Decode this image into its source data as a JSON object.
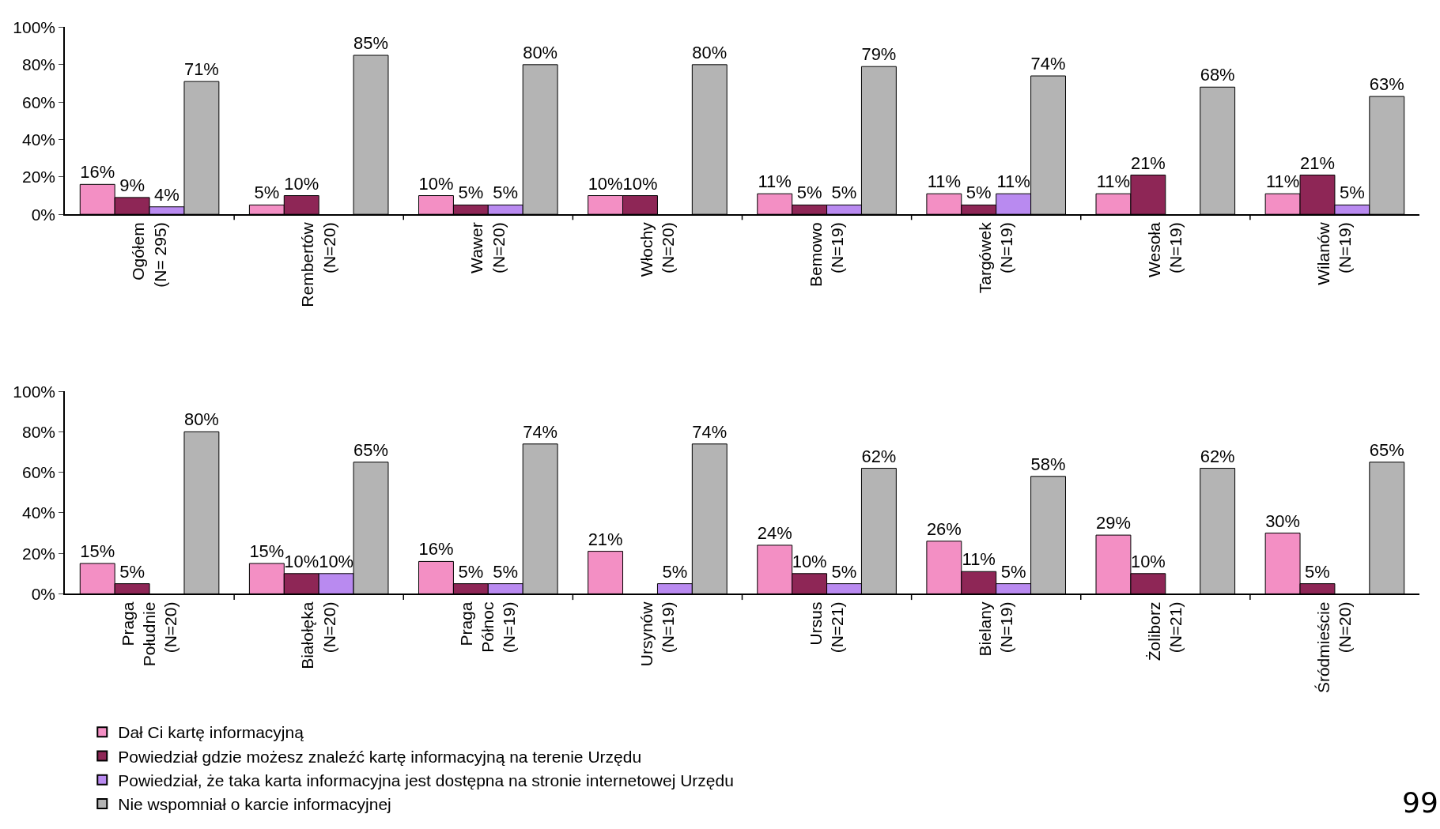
{
  "chart_data": [
    {
      "type": "bar",
      "categories": [
        "Ogółem\n(N= 295)",
        "Rembertów\n(N=20)",
        "Wawer\n(N=20)",
        "Włochy\n(N=20)",
        "Bemowo\n(N=19)",
        "Targówek\n(N=19)",
        "Wesoła\n(N=19)",
        "Wilanów\n(N=19)"
      ],
      "series": [
        {
          "name": "Dał Ci kartę informacyjną",
          "color": "#f38fc4",
          "values": [
            16,
            5,
            10,
            10,
            11,
            11,
            11,
            11
          ],
          "value_labels": [
            "16%",
            "5%",
            "10%",
            "10%",
            "11%",
            "11%",
            "11%",
            "11%"
          ]
        },
        {
          "name": "Powiedział gdzie możesz znaleźć kartę informacyjną na terenie Urzędu",
          "color": "#8e2656",
          "values": [
            9,
            10,
            5,
            10,
            5,
            5,
            21,
            21
          ],
          "value_labels": [
            "9%",
            "10%",
            "5%",
            "10%",
            "5%",
            "5%",
            "21%",
            "21%"
          ]
        },
        {
          "name": "Powiedział, że taka karta informacyjna jest dostępna na stronie internetowej Urzędu",
          "color": "#b98af0",
          "values": [
            4,
            null,
            5,
            null,
            5,
            11,
            null,
            5
          ],
          "value_labels": [
            "4%",
            null,
            "5%",
            null,
            "5%",
            "11%",
            null,
            "5%"
          ]
        },
        {
          "name": "Nie wspomniał o karcie informacyjnej",
          "color": "#b4b4b4",
          "values": [
            71,
            85,
            80,
            80,
            79,
            74,
            68,
            63
          ],
          "value_labels": [
            "71%",
            "85%",
            "80%",
            "80%",
            "79%",
            "74%",
            "68%",
            "63%"
          ]
        }
      ],
      "ylim": [
        0,
        100
      ],
      "yticks": [
        {
          "value": 0,
          "label": "0%"
        },
        {
          "value": 20,
          "label": "20%"
        },
        {
          "value": 40,
          "label": "40%"
        },
        {
          "value": 60,
          "label": "60%"
        },
        {
          "value": 80,
          "label": "80%"
        },
        {
          "value": 100,
          "label": "100%"
        }
      ],
      "grid": false,
      "legend": "bottom left"
    },
    {
      "type": "bar",
      "categories": [
        "Praga\nPołudnie\n(N=20)",
        "Białołęka\n(N=20)",
        "Praga\nPółnoc\n(N=19)",
        "Ursynów\n(N=19)",
        "Ursus\n(N=21)",
        "Bielany\n(N=19)",
        "Żoliborz\n(N=21)",
        "Śródmieście\n(N=20)"
      ],
      "series": [
        {
          "name": "Dał Ci kartę informacyjną",
          "color": "#f38fc4",
          "values": [
            15,
            15,
            16,
            21,
            24,
            26,
            29,
            30
          ],
          "value_labels": [
            "15%",
            "15%",
            "16%",
            "21%",
            "24%",
            "26%",
            "29%",
            "30%"
          ]
        },
        {
          "name": "Powiedział gdzie możesz znaleźć kartę informacyjną na terenie Urzędu",
          "color": "#8e2656",
          "values": [
            5,
            10,
            5,
            null,
            10,
            11,
            10,
            5
          ],
          "value_labels": [
            "5%",
            "10%",
            "5%",
            null,
            "10%",
            "11%",
            "10%",
            "5%"
          ]
        },
        {
          "name": "Powiedział, że taka karta informacyjna jest dostępna na stronie internetowej Urzędu",
          "color": "#b98af0",
          "values": [
            null,
            10,
            5,
            5,
            5,
            5,
            null,
            null
          ],
          "value_labels": [
            null,
            "10%",
            "5%",
            "5%",
            "5%",
            "5%",
            null,
            null
          ]
        },
        {
          "name": "Nie wspomniał o karcie informacyjnej",
          "color": "#b4b4b4",
          "values": [
            80,
            65,
            74,
            74,
            62,
            58,
            62,
            65
          ],
          "value_labels": [
            "80%",
            "65%",
            "74%",
            "74%",
            "62%",
            "58%",
            "62%",
            "65%"
          ]
        }
      ],
      "ylim": [
        0,
        100
      ],
      "yticks": [
        {
          "value": 0,
          "label": "0%"
        },
        {
          "value": 20,
          "label": "20%"
        },
        {
          "value": 40,
          "label": "40%"
        },
        {
          "value": 60,
          "label": "60%"
        },
        {
          "value": 80,
          "label": "80%"
        },
        {
          "value": 100,
          "label": "100%"
        }
      ],
      "grid": false,
      "legend": "bottom left",
      "annotations": [
        "99"
      ]
    }
  ]
}
